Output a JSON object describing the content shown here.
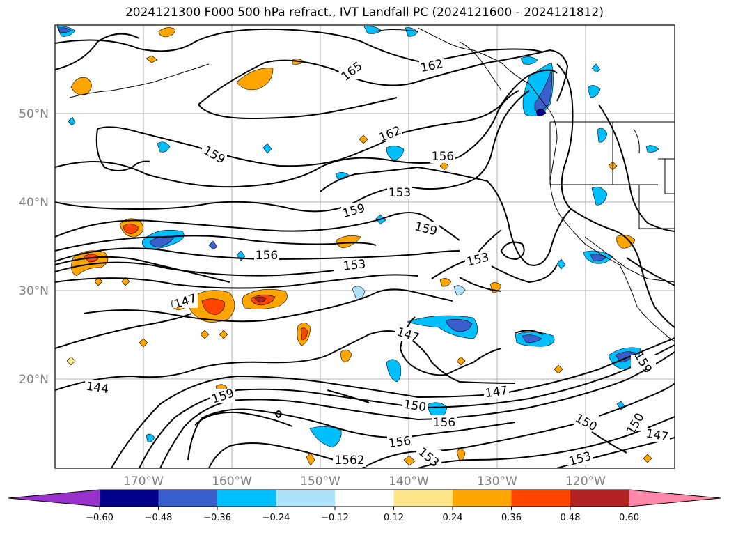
{
  "title": "2024121300 F000 500 hPa refract., IVT Landfall PC (2024121600 - 2024121812)",
  "lat_labels": [
    "50°N",
    "40°N",
    "30°N",
    "20°N"
  ],
  "lon_labels": [
    "170°W",
    "160°W",
    "150°W",
    "140°W",
    "130°W",
    "120°W"
  ],
  "contour_labels": [
    "165",
    "162",
    "162",
    "159",
    "156",
    "153",
    "159",
    "159",
    "156",
    "153",
    "153",
    "147",
    "147",
    "147",
    "144",
    "159",
    "150",
    "156",
    "156",
    "150",
    "150",
    "147",
    "153",
    "153",
    "1562",
    "159"
  ],
  "colorbar": {
    "ticks": [
      "−0.60",
      "−0.48",
      "−0.36",
      "−0.24",
      "−0.12",
      "0.12",
      "0.24",
      "0.36",
      "0.48",
      "0.60"
    ],
    "colors": [
      "#9932cc",
      "#00008b",
      "#3a5fcd",
      "#00bfff",
      "#afe1fa",
      "#ffffff",
      "#fde68a",
      "#ffa500",
      "#ff4500",
      "#b22222",
      "#ff88aa"
    ]
  }
}
